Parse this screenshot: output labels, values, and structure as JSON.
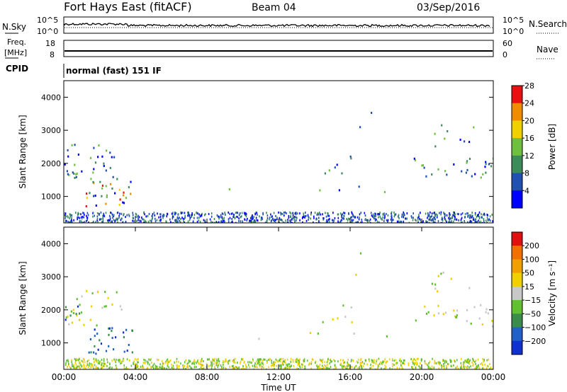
{
  "header": {
    "title": "Fort Hays East (fitACF)",
    "beam": "Beam 04",
    "date": "03/Sep/2016"
  },
  "strip_noise": {
    "left_label": "N.Sky",
    "right_label": "N.Search",
    "ticks_left": [
      "10^5",
      "10^0"
    ],
    "ticks_right": [
      "10^5",
      "10^0"
    ]
  },
  "strip_freq": {
    "left_label_1": "Freq.",
    "left_label_2": "[MHz]",
    "right_label": "Nave",
    "ticks_left": [
      "18",
      "8"
    ],
    "ticks_right": [
      "60",
      "0"
    ]
  },
  "cpid": {
    "label": "CPID",
    "value": "normal (fast) 151 IF"
  },
  "x_axis": {
    "label": "Time UT",
    "ticks": [
      "00:00",
      "04:00",
      "08:00",
      "12:00",
      "16:00",
      "20:00",
      "00:00"
    ]
  },
  "chart_data": [
    {
      "type": "heatmap",
      "ylabel": "Slant Range [km]",
      "ylim": [
        200,
        4500
      ],
      "yticks": [
        "1000",
        "2000",
        "3000",
        "4000"
      ],
      "colorbar": {
        "label": "Power [dB]",
        "ticks": [
          "4",
          "8",
          "12",
          "16",
          "20",
          "24",
          "28"
        ],
        "colors": [
          "#0000ff",
          "#2050b0",
          "#3c8c5a",
          "#70c040",
          "#f0d000",
          "#f08c00",
          "#e81010"
        ]
      }
    },
    {
      "type": "heatmap",
      "ylabel": "Slant Range [km]",
      "ylim": [
        200,
        4500
      ],
      "yticks": [
        "1000",
        "2000",
        "3000",
        "4000"
      ],
      "colorbar": {
        "label": "Velocity [m s⁻¹]",
        "ticks": [
          "200",
          "100",
          "50",
          "15",
          "−15",
          "−50",
          "−100",
          "−200"
        ],
        "colors": [
          "#1030d0",
          "#2060c8",
          "#3a8c4a",
          "#60c030",
          "#c8c8c8",
          "#f0d000",
          "#f0a000",
          "#f07000",
          "#e01010"
        ]
      }
    }
  ]
}
